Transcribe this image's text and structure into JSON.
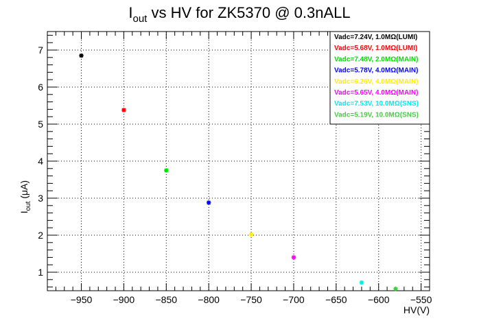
{
  "chart_data": {
    "type": "scatter",
    "title_main": "I",
    "title_sub": "out",
    "title_rest": " vs HV for ZK5370 @ 0.3nALL",
    "xlabel": "HV(V)",
    "ylabel_main": "I",
    "ylabel_sub": "out",
    "ylabel_rest": " (μA)",
    "xlim": [
      -990,
      -540
    ],
    "ylim": [
      0.5,
      7.5
    ],
    "x_ticks": [
      -950,
      -900,
      -850,
      -800,
      -750,
      -700,
      -650,
      -600,
      -550
    ],
    "x_tick_labels": [
      "−950",
      "−900",
      "−850",
      "−800",
      "−750",
      "−700",
      "−650",
      "−600",
      "−550"
    ],
    "y_ticks": [
      1,
      2,
      3,
      4,
      5,
      6,
      7
    ],
    "y_tick_labels": [
      "1",
      "2",
      "3",
      "4",
      "5",
      "6",
      "7"
    ],
    "grid": true,
    "legend_position": "top-right",
    "series": [
      {
        "name": "Vadc=7.24V, 1.0MΩ(LUMI)",
        "color": "#000000",
        "x": [
          -950
        ],
        "y": [
          6.85
        ]
      },
      {
        "name": "Vadc=5.68V, 1.0MΩ(LUMI)",
        "color": "#ff0000",
        "x": [
          -900
        ],
        "y": [
          5.38
        ]
      },
      {
        "name": "Vadc=7.48V, 2.0MΩ(MAIN)",
        "color": "#00dd00",
        "x": [
          -850
        ],
        "y": [
          3.75
        ]
      },
      {
        "name": "Vadc=5.78V, 4.0MΩ(MAIN)",
        "color": "#0000ff",
        "x": [
          -800
        ],
        "y": [
          2.88
        ]
      },
      {
        "name": "Vadc=6.26V, 4.0MΩ(MAIN)",
        "color": "#ffee00",
        "x": [
          -750
        ],
        "y": [
          2.02
        ]
      },
      {
        "name": "Vadc=5.65V, 4.0MΩ(MAIN)",
        "color": "#ff00ff",
        "x": [
          -700
        ],
        "y": [
          1.4
        ]
      },
      {
        "name": "Vadc=7.53V, 10.0MΩ(SNS)",
        "color": "#00eeee",
        "x": [
          -620
        ],
        "y": [
          0.72
        ]
      },
      {
        "name": "Vadc=5.19V, 10.0MΩ(SNS)",
        "color": "#44cc44",
        "x": [
          -580
        ],
        "y": [
          0.55
        ]
      }
    ]
  }
}
